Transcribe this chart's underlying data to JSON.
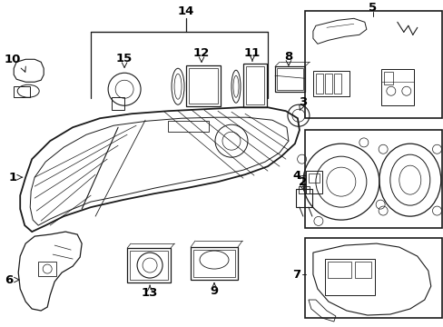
{
  "bg_color": "#ffffff",
  "line_color": "#1a1a1a",
  "label_color": "#000000",
  "label_fontsize": 9.5,
  "lw_main": 1.0,
  "lw_part": 0.8,
  "lw_thin": 0.5
}
